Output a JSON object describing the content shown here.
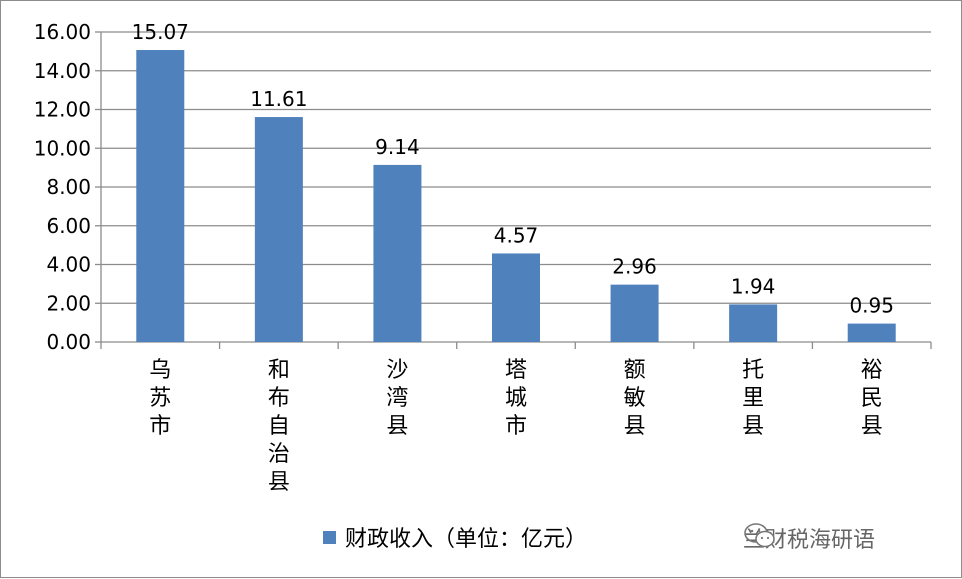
{
  "chart_data": {
    "type": "bar",
    "categories": [
      "乌苏市",
      "和布自治县",
      "沙湾县",
      "塔城市",
      "额敏县",
      "托里县",
      "裕民县"
    ],
    "series": [
      {
        "name": "财政收入（单位：亿元）",
        "values": [
          15.07,
          11.61,
          9.14,
          4.57,
          2.96,
          1.94,
          0.95
        ]
      }
    ],
    "data_labels": [
      "15.07",
      "11.61",
      "9.14",
      "4.57",
      "2.96",
      "1.94",
      "0.95"
    ],
    "y_ticks": [
      "0.00",
      "2.00",
      "4.00",
      "6.00",
      "8.00",
      "10.00",
      "12.00",
      "14.00",
      "16.00"
    ],
    "ylim": [
      0,
      16
    ],
    "grid": true,
    "legend_position": "bottom",
    "bar_color": "#4f81bd"
  },
  "legend": {
    "label": "财政收入（单位：亿元）"
  },
  "watermark": {
    "text": "兰财税海研语",
    "icon": "wechat-icon"
  }
}
